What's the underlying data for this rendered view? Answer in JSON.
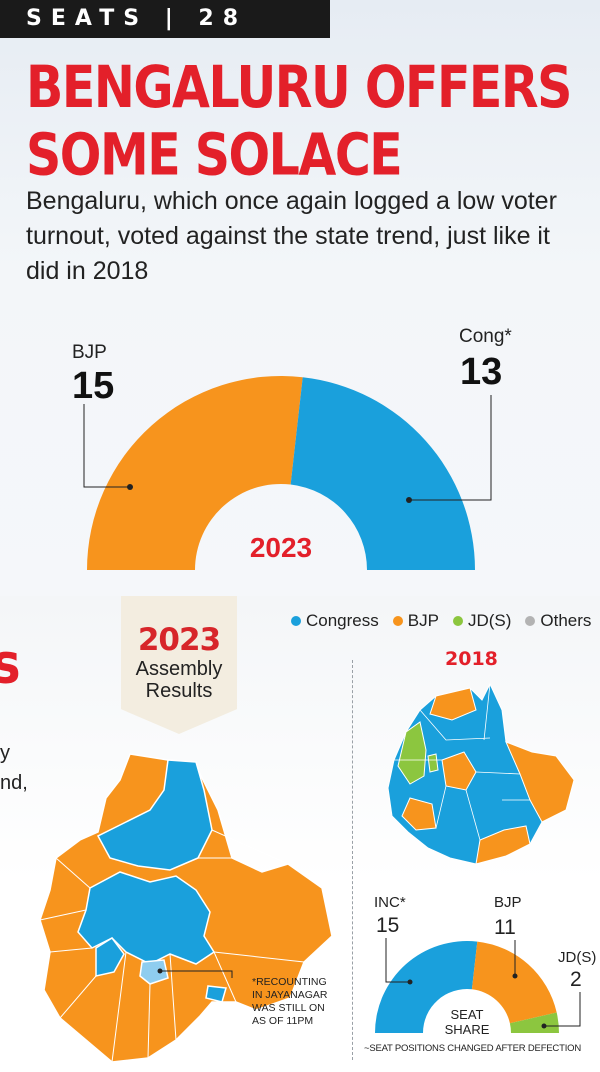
{
  "header": {
    "seats_bar": "SEATS | 28"
  },
  "headline": {
    "line1": "BENGALURU OFFERS",
    "line2": "SOME SOLACE"
  },
  "subhead": "Bengaluru, which once again logged a low voter turnout, voted against the state trend, just like it did in 2018",
  "colors": {
    "congress": "#1aa0dc",
    "bjp": "#f7941d",
    "jds": "#8cc63f",
    "others": "#b3b3b3",
    "accent_red": "#e3202a"
  },
  "main_chart": {
    "year_label": "2023",
    "bjp_label": "BJP",
    "bjp_value": "15",
    "cong_label": "Cong*",
    "cong_value": "13"
  },
  "left_cut": {
    "letter": "s",
    "frag1": "y",
    "frag2": "nd,"
  },
  "map_tag": {
    "year": "2023",
    "line1": "Assembly",
    "line2": "Results"
  },
  "legend": [
    {
      "label": "Congress",
      "color": "#1aa0dc"
    },
    {
      "label": "BJP",
      "color": "#f7941d"
    },
    {
      "label": "JD(S)",
      "color": "#8cc63f"
    },
    {
      "label": "Others",
      "color": "#b3b3b3"
    }
  ],
  "map_2018_label": "2018",
  "seat_share": {
    "inc_label": "INC*",
    "inc_value": "15",
    "bjp_label": "BJP",
    "bjp_value": "11",
    "jds_label": "JD(S)",
    "jds_value": "2",
    "center_line1": "SEAT",
    "center_line2": "SHARE"
  },
  "footnote": {
    "line1": "*RECOUNTING",
    "line2": "IN JAYANAGAR",
    "line3": "WAS STILL ON",
    "line4": "AS OF 11PM"
  },
  "defection_note": "~SEAT POSITIONS CHANGED AFTER DEFECTION",
  "chart_data": [
    {
      "type": "pie",
      "title": "2023",
      "categories": [
        "BJP",
        "Cong*"
      ],
      "values": [
        15,
        13
      ],
      "colors": [
        "#f7941d",
        "#1aa0dc"
      ],
      "style": "half-donut"
    },
    {
      "type": "pie",
      "title": "SEAT SHARE",
      "categories": [
        "INC*",
        "BJP",
        "JD(S)"
      ],
      "values": [
        15,
        11,
        2
      ],
      "colors": [
        "#1aa0dc",
        "#f7941d",
        "#8cc63f"
      ],
      "style": "half-donut"
    }
  ]
}
